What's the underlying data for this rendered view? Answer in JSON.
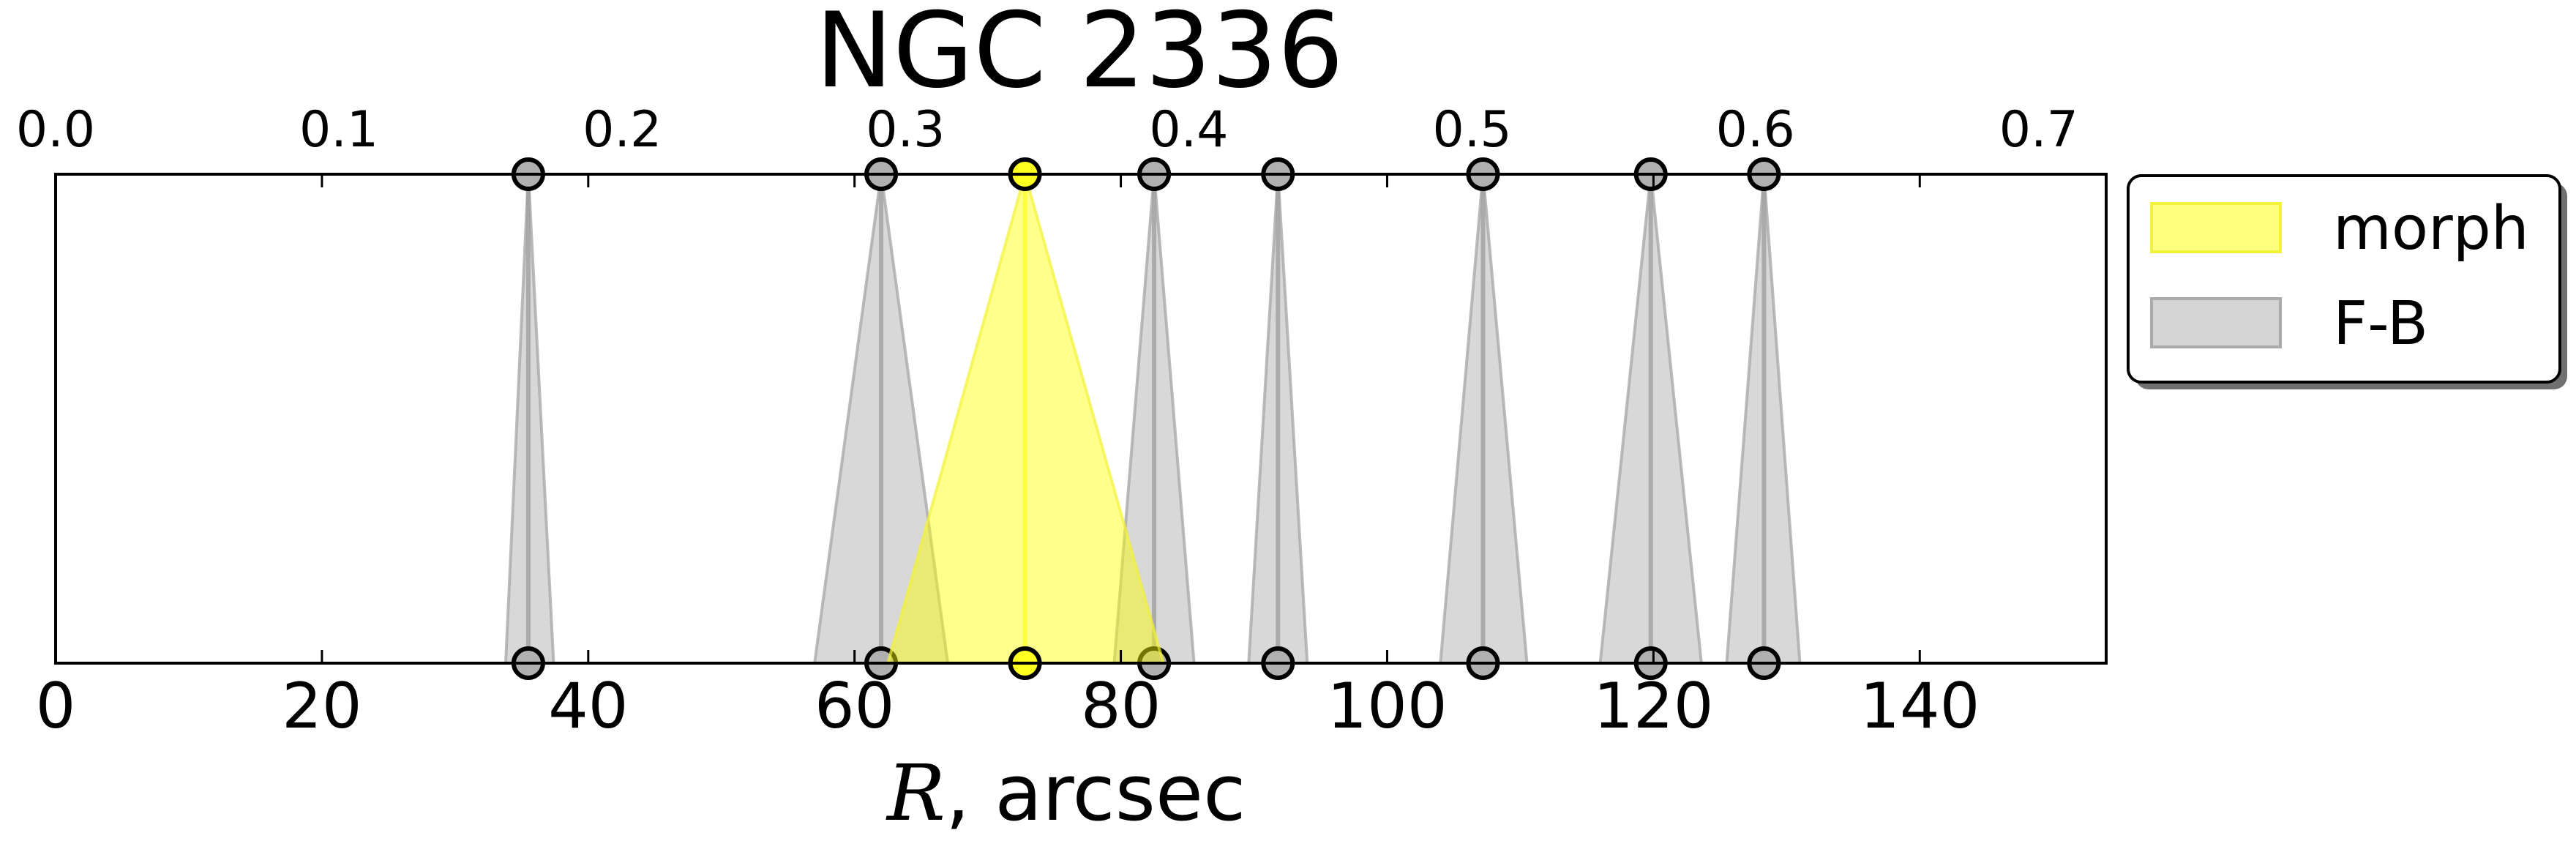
{
  "chart_data": {
    "type": "area",
    "title": "NGC 2336",
    "xlabel_math": "R",
    "xlabel_text": ", arcsec",
    "xlim": [
      0,
      154
    ],
    "ylim": [
      0,
      1
    ],
    "grid": false,
    "legend_placement": "outside right, top",
    "x_ticks": [
      0,
      20,
      40,
      60,
      80,
      100,
      120,
      140
    ],
    "x_tick_labels": [
      "0",
      "20",
      "40",
      "60",
      "80",
      "100",
      "120",
      "140"
    ],
    "top_axis": {
      "scale_per_arcsec": 0.0047,
      "ticks": [
        0.0,
        0.1,
        0.2,
        0.3,
        0.4,
        0.5,
        0.6,
        0.7
      ],
      "tick_labels": [
        "0.0",
        "0.1",
        "0.2",
        "0.3",
        "0.4",
        "0.5",
        "0.6",
        "0.7"
      ]
    },
    "series": [
      {
        "name": "morph",
        "color": "#ffff00",
        "edge_color": "#f2f23a",
        "items": [
          {
            "x": 72.8,
            "low": 62.5,
            "high": 83.2
          }
        ]
      },
      {
        "name": "F-B",
        "color": "#b8b8b8",
        "edge_color": "#aaaaaa",
        "items": [
          {
            "x": 35.5,
            "low": 33.8,
            "high": 37.4
          },
          {
            "x": 62.0,
            "low": 57.0,
            "high": 67.0
          },
          {
            "x": 82.5,
            "low": 79.5,
            "high": 85.5
          },
          {
            "x": 91.8,
            "low": 89.6,
            "high": 94.0
          },
          {
            "x": 107.2,
            "low": 104.0,
            "high": 110.5
          },
          {
            "x": 119.8,
            "low": 116.0,
            "high": 123.6
          },
          {
            "x": 128.3,
            "low": 125.5,
            "high": 131.0
          }
        ]
      }
    ]
  }
}
